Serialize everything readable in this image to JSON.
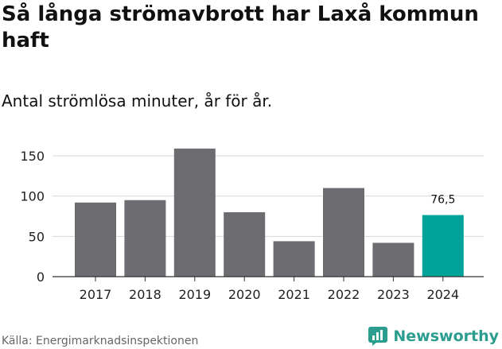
{
  "title": "Så långa strömavbrott har Laxå kommun haft",
  "subtitle": "Antal strömlösa minuter, år för år.",
  "source": "Källa: Energimarknadsinspektionen",
  "brand": {
    "name": "Newsworthy",
    "color": "#2a9d8f"
  },
  "colors": {
    "bar": "#6d6c71",
    "highlight": "#00a397",
    "grid": "#d9d9d9",
    "axis": "#333333"
  },
  "chart_data": {
    "type": "bar",
    "title": "Så långa strömavbrott har Laxå kommun haft",
    "subtitle": "Antal strömlösa minuter, år för år.",
    "xlabel": "",
    "ylabel": "",
    "categories": [
      "2017",
      "2018",
      "2019",
      "2020",
      "2021",
      "2022",
      "2023",
      "2024"
    ],
    "values": [
      92,
      95,
      159,
      80,
      44,
      110,
      42,
      76.5
    ],
    "highlight_index": 7,
    "data_labels": [
      {
        "index": 7,
        "text": "76,5"
      }
    ],
    "yticks": [
      0,
      50,
      100,
      150
    ],
    "ylim": [
      0,
      165
    ],
    "grid": true,
    "legend": "none"
  }
}
